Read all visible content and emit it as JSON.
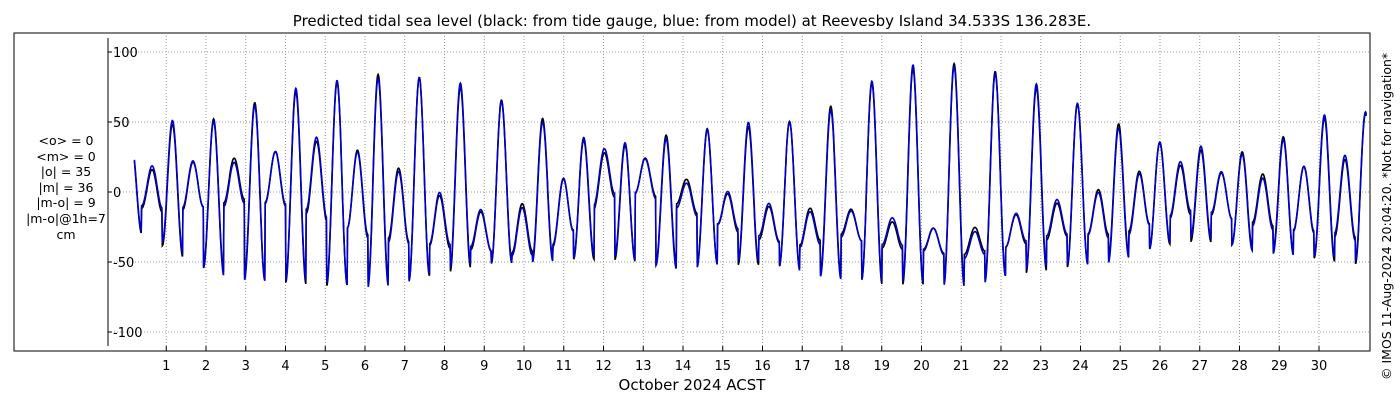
{
  "stats": {
    "lines": [
      "<o> = 0",
      "<m> = 0",
      "|o| = 35",
      "|m| = 36",
      "|m-o| = 9",
      "|m-o|@1h=7",
      "cm"
    ]
  },
  "credit": "© IMOS 11-Aug-2024 20:04:20. *Not for navigation*",
  "chart_data": {
    "type": "line",
    "title": "Predicted tidal sea level (black: from tide gauge, blue: from model) at Reevesby Island 34.533S 136.283E.",
    "xlabel": "October 2024 ACST",
    "ylabel": "",
    "xlim": [
      0.0,
      31.2
    ],
    "ylim": [
      -110,
      110
    ],
    "x_ticks": [
      1,
      2,
      3,
      4,
      5,
      6,
      7,
      8,
      9,
      10,
      11,
      12,
      13,
      14,
      15,
      16,
      17,
      18,
      19,
      20,
      21,
      22,
      23,
      24,
      25,
      26,
      27,
      28,
      29,
      30
    ],
    "y_ticks": [
      -100,
      -50,
      0,
      50,
      100
    ],
    "grid": true,
    "series_colors": {
      "gauge": "#000000",
      "model": "#0000cc"
    },
    "tidal_envelope": {
      "day": [
        0.1,
        1,
        2,
        3,
        4,
        5,
        6,
        7,
        8,
        9,
        10,
        11,
        12,
        13,
        14,
        15,
        16,
        17,
        18,
        19,
        20,
        21,
        22,
        23,
        24,
        25,
        26,
        27,
        28,
        29,
        30,
        31
      ],
      "high": [
        34,
        48,
        50,
        62,
        70,
        76,
        84,
        84,
        78,
        70,
        60,
        44,
        30,
        36,
        44,
        46,
        47,
        52,
        65,
        82,
        90,
        92,
        85,
        73,
        62,
        48,
        35,
        30,
        28,
        38,
        52,
        56
      ],
      "low": [
        -25,
        -40,
        -55,
        -60,
        -65,
        -67,
        -66,
        -63,
        -58,
        -52,
        -47,
        -48,
        -48,
        -50,
        -52,
        -52,
        -52,
        -55,
        -60,
        -66,
        -66,
        -65,
        -60,
        -57,
        -52,
        -46,
        -38,
        -35,
        -38,
        -42,
        -48,
        -52
      ],
      "mid_high": [
        10,
        20,
        22,
        25,
        30,
        38,
        28,
        15,
        -5,
        -15,
        -8,
        10,
        28,
        25,
        10,
        0,
        -10,
        -12,
        -10,
        -20,
        -25,
        -28,
        -20,
        -10,
        -5,
        10,
        20,
        18,
        10,
        15,
        20,
        25
      ],
      "mid_low": [
        -10,
        -15,
        -10,
        -5,
        -10,
        -20,
        -30,
        -35,
        -40,
        -42,
        -44,
        -35,
        -5,
        0,
        -10,
        -25,
        -35,
        -38,
        -30,
        -40,
        -42,
        -45,
        -40,
        -35,
        -30,
        -30,
        -20,
        -15,
        -20,
        -25,
        -30,
        -35
      ]
    }
  }
}
